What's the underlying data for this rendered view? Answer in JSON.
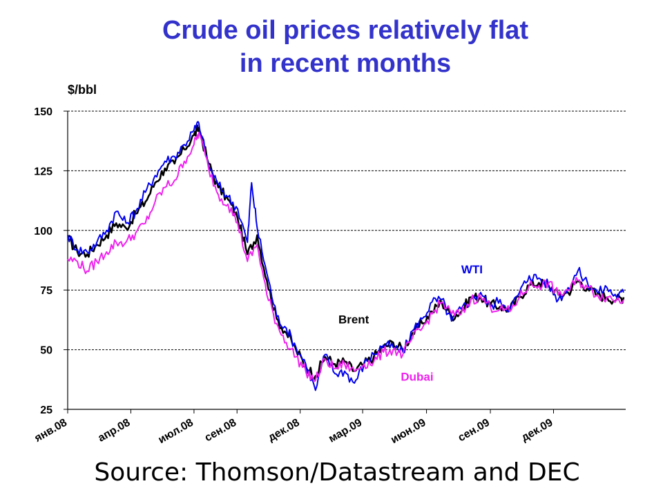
{
  "chart_data": {
    "type": "line",
    "title_lines": [
      "Crude oil prices relatively flat",
      "in recent months"
    ],
    "ylabel": "$/bbl",
    "ylim": [
      25,
      150
    ],
    "yticks": [
      "150",
      "125",
      "100",
      "75",
      "50",
      "25"
    ],
    "ytick_values": [
      150,
      125,
      100,
      75,
      50,
      25
    ],
    "xlim": [
      "2008-01-01",
      "2010-03-15"
    ],
    "xticks": [
      "янв.08",
      "апр.08",
      "июл.08",
      "сен.08",
      "дек.08",
      "мар.09",
      "июн.09",
      "сен.09",
      "дек.09"
    ],
    "xtick_dates": [
      "2008-01-01",
      "2008-04-01",
      "2008-07-01",
      "2008-09-01",
      "2008-12-01",
      "2009-03-01",
      "2009-06-01",
      "2009-09-01",
      "2009-12-01"
    ],
    "grid": "horizontal dashed",
    "series": [
      {
        "name": "Brent",
        "color": "#000000",
        "points": [
          [
            "2008-01-01",
            97
          ],
          [
            "2008-01-15",
            91
          ],
          [
            "2008-01-29",
            90
          ],
          [
            "2008-02-12",
            94
          ],
          [
            "2008-02-26",
            98
          ],
          [
            "2008-03-11",
            103
          ],
          [
            "2008-03-25",
            101
          ],
          [
            "2008-04-08",
            107
          ],
          [
            "2008-04-22",
            112
          ],
          [
            "2008-05-06",
            120
          ],
          [
            "2008-05-20",
            126
          ],
          [
            "2008-06-03",
            128
          ],
          [
            "2008-06-17",
            134
          ],
          [
            "2008-07-01",
            140
          ],
          [
            "2008-07-08",
            143
          ],
          [
            "2008-07-22",
            128
          ],
          [
            "2008-08-05",
            118
          ],
          [
            "2008-08-19",
            113
          ],
          [
            "2008-09-02",
            105
          ],
          [
            "2008-09-16",
            90
          ],
          [
            "2008-09-30",
            98
          ],
          [
            "2008-10-14",
            79
          ],
          [
            "2008-10-28",
            63
          ],
          [
            "2008-11-11",
            57
          ],
          [
            "2008-11-25",
            50
          ],
          [
            "2008-12-09",
            43
          ],
          [
            "2008-12-23",
            39
          ],
          [
            "2009-01-06",
            47
          ],
          [
            "2009-01-20",
            44
          ],
          [
            "2009-02-03",
            45
          ],
          [
            "2009-02-17",
            41
          ],
          [
            "2009-03-03",
            44
          ],
          [
            "2009-03-17",
            47
          ],
          [
            "2009-03-31",
            51
          ],
          [
            "2009-04-14",
            53
          ],
          [
            "2009-04-28",
            50
          ],
          [
            "2009-05-12",
            57
          ],
          [
            "2009-05-26",
            61
          ],
          [
            "2009-06-09",
            66
          ],
          [
            "2009-06-23",
            70
          ],
          [
            "2009-07-07",
            64
          ],
          [
            "2009-07-21",
            66
          ],
          [
            "2009-08-04",
            72
          ],
          [
            "2009-08-18",
            72
          ],
          [
            "2009-09-01",
            69
          ],
          [
            "2009-09-15",
            68
          ],
          [
            "2009-09-29",
            67
          ],
          [
            "2009-10-13",
            72
          ],
          [
            "2009-10-27",
            77
          ],
          [
            "2009-11-10",
            78
          ],
          [
            "2009-11-24",
            77
          ],
          [
            "2009-12-08",
            73
          ],
          [
            "2009-12-22",
            74
          ],
          [
            "2010-01-05",
            79
          ],
          [
            "2010-01-19",
            76
          ],
          [
            "2010-02-02",
            73
          ],
          [
            "2010-02-16",
            72
          ],
          [
            "2010-03-02",
            71
          ],
          [
            "2010-03-12",
            72
          ]
        ]
      },
      {
        "name": "WTI",
        "color": "#0000ee",
        "points": [
          [
            "2008-01-01",
            98
          ],
          [
            "2008-01-15",
            92
          ],
          [
            "2008-01-29",
            91
          ],
          [
            "2008-02-12",
            95
          ],
          [
            "2008-02-26",
            100
          ],
          [
            "2008-03-11",
            108
          ],
          [
            "2008-03-25",
            103
          ],
          [
            "2008-04-08",
            108
          ],
          [
            "2008-04-22",
            116
          ],
          [
            "2008-05-06",
            123
          ],
          [
            "2008-05-20",
            129
          ],
          [
            "2008-06-03",
            131
          ],
          [
            "2008-06-17",
            136
          ],
          [
            "2008-07-01",
            142
          ],
          [
            "2008-07-08",
            145
          ],
          [
            "2008-07-22",
            127
          ],
          [
            "2008-08-05",
            119
          ],
          [
            "2008-08-19",
            114
          ],
          [
            "2008-09-02",
            109
          ],
          [
            "2008-09-16",
            95
          ],
          [
            "2008-09-22",
            120
          ],
          [
            "2008-09-30",
            101
          ],
          [
            "2008-10-14",
            82
          ],
          [
            "2008-10-28",
            64
          ],
          [
            "2008-11-11",
            59
          ],
          [
            "2008-11-25",
            51
          ],
          [
            "2008-12-09",
            44
          ],
          [
            "2008-12-23",
            33
          ],
          [
            "2009-01-06",
            48
          ],
          [
            "2009-01-20",
            40
          ],
          [
            "2009-02-03",
            41
          ],
          [
            "2009-02-17",
            36
          ],
          [
            "2009-03-03",
            44
          ],
          [
            "2009-03-17",
            48
          ],
          [
            "2009-03-31",
            52
          ],
          [
            "2009-04-14",
            51
          ],
          [
            "2009-04-28",
            49
          ],
          [
            "2009-05-12",
            58
          ],
          [
            "2009-05-26",
            63
          ],
          [
            "2009-06-09",
            70
          ],
          [
            "2009-06-23",
            71
          ],
          [
            "2009-07-07",
            62
          ],
          [
            "2009-07-21",
            67
          ],
          [
            "2009-08-04",
            71
          ],
          [
            "2009-08-18",
            74
          ],
          [
            "2009-09-01",
            68
          ],
          [
            "2009-09-15",
            71
          ],
          [
            "2009-09-29",
            67
          ],
          [
            "2009-10-13",
            74
          ],
          [
            "2009-10-27",
            81
          ],
          [
            "2009-11-10",
            80
          ],
          [
            "2009-11-24",
            77
          ],
          [
            "2009-12-08",
            71
          ],
          [
            "2009-12-22",
            76
          ],
          [
            "2010-01-05",
            83
          ],
          [
            "2010-01-19",
            78
          ],
          [
            "2010-02-02",
            74
          ],
          [
            "2010-02-16",
            76
          ],
          [
            "2010-03-02",
            72
          ],
          [
            "2010-03-12",
            74
          ]
        ]
      },
      {
        "name": "Dubai",
        "color": "#ee22ee",
        "points": [
          [
            "2008-01-01",
            88
          ],
          [
            "2008-01-15",
            87
          ],
          [
            "2008-01-29",
            83
          ],
          [
            "2008-02-12",
            87
          ],
          [
            "2008-02-26",
            91
          ],
          [
            "2008-03-11",
            95
          ],
          [
            "2008-03-25",
            95
          ],
          [
            "2008-04-08",
            99
          ],
          [
            "2008-04-22",
            103
          ],
          [
            "2008-05-06",
            112
          ],
          [
            "2008-05-20",
            118
          ],
          [
            "2008-06-03",
            121
          ],
          [
            "2008-06-17",
            129
          ],
          [
            "2008-07-01",
            136
          ],
          [
            "2008-07-08",
            141
          ],
          [
            "2008-07-22",
            126
          ],
          [
            "2008-08-05",
            115
          ],
          [
            "2008-08-19",
            111
          ],
          [
            "2008-09-02",
            103
          ],
          [
            "2008-09-16",
            87
          ],
          [
            "2008-09-30",
            94
          ],
          [
            "2008-10-14",
            73
          ],
          [
            "2008-10-28",
            61
          ],
          [
            "2008-11-11",
            53
          ],
          [
            "2008-11-25",
            47
          ],
          [
            "2008-12-09",
            41
          ],
          [
            "2008-12-23",
            37
          ],
          [
            "2009-01-06",
            46
          ],
          [
            "2009-01-20",
            42
          ],
          [
            "2009-02-03",
            44
          ],
          [
            "2009-02-17",
            41
          ],
          [
            "2009-03-03",
            44
          ],
          [
            "2009-03-17",
            45
          ],
          [
            "2009-03-31",
            49
          ],
          [
            "2009-04-14",
            50
          ],
          [
            "2009-04-28",
            48
          ],
          [
            "2009-05-12",
            55
          ],
          [
            "2009-05-26",
            59
          ],
          [
            "2009-06-09",
            65
          ],
          [
            "2009-06-23",
            70
          ],
          [
            "2009-07-07",
            65
          ],
          [
            "2009-07-21",
            65
          ],
          [
            "2009-08-04",
            71
          ],
          [
            "2009-08-18",
            72
          ],
          [
            "2009-09-01",
            68
          ],
          [
            "2009-09-15",
            67
          ],
          [
            "2009-09-29",
            66
          ],
          [
            "2009-10-13",
            72
          ],
          [
            "2009-10-27",
            77
          ],
          [
            "2009-11-10",
            77
          ],
          [
            "2009-11-24",
            78
          ],
          [
            "2009-12-08",
            73
          ],
          [
            "2009-12-22",
            75
          ],
          [
            "2010-01-05",
            79
          ],
          [
            "2010-01-19",
            76
          ],
          [
            "2010-02-02",
            73
          ],
          [
            "2010-02-16",
            72
          ],
          [
            "2010-03-02",
            71
          ],
          [
            "2010-03-12",
            71
          ]
        ]
      }
    ],
    "series_labels": [
      {
        "text": "WTI",
        "color": "#0000ee",
        "x": "2009-07-21",
        "y": 82
      },
      {
        "text": "Brent",
        "color": "#000000",
        "x": "2009-01-25",
        "y": 61
      },
      {
        "text": "Dubai",
        "color": "#ee22ee",
        "x": "2009-04-25",
        "y": 37
      }
    ]
  },
  "source_text": "Source: Thomson/Datastream and DEC"
}
